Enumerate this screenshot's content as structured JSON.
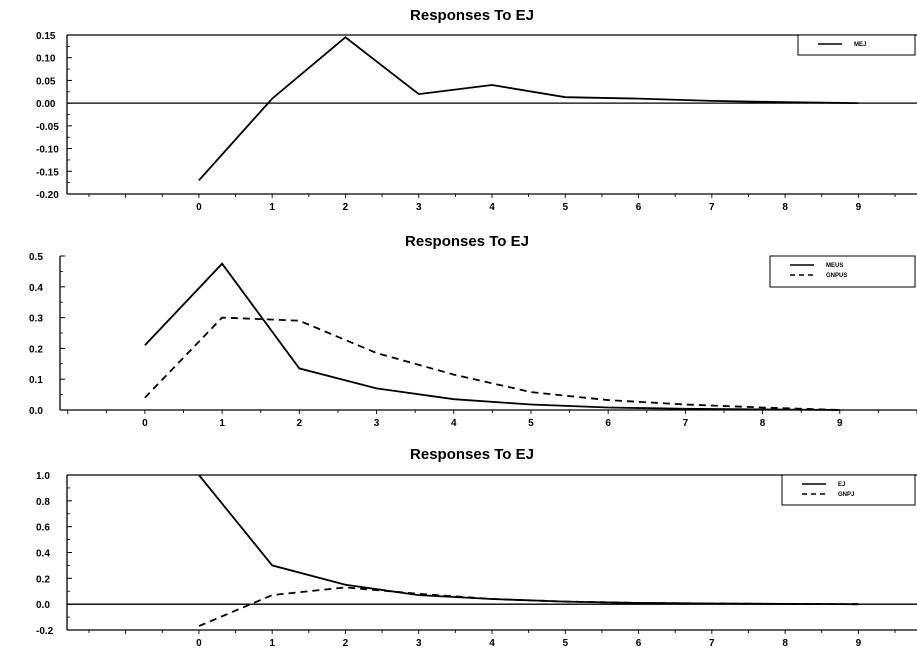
{
  "chart_data": [
    {
      "type": "line",
      "title": "Responses To EJ",
      "xlabel": "",
      "ylabel": "",
      "xlim": [
        -1.8,
        9.8
      ],
      "ylim": [
        -0.2,
        0.15
      ],
      "xticks": [
        0,
        1,
        2,
        3,
        4,
        5,
        6,
        7,
        8,
        9
      ],
      "xtick_labels": [
        "0",
        "1",
        "2",
        "3",
        "4",
        "5",
        "6",
        "7",
        "8",
        "9"
      ],
      "yticks": [
        0.15,
        0.1,
        0.05,
        0.0,
        -0.05,
        -0.1,
        -0.15,
        -0.2
      ],
      "ytick_labels": [
        "0.15",
        "0.10",
        "0.05",
        "0.00",
        "-0.05",
        "-0.10",
        "-0.15",
        "-0.20"
      ],
      "zero_line": true,
      "grid": false,
      "legend_position": "top-right",
      "series": [
        {
          "name": "MEJ",
          "dash": "solid",
          "x": [
            0,
            0.5,
            1,
            2,
            3,
            4,
            5,
            6,
            7,
            8,
            9
          ],
          "y": [
            -0.17,
            -0.08,
            0.01,
            0.145,
            0.02,
            0.04,
            0.013,
            0.01,
            0.005,
            0.002,
            0.0
          ]
        }
      ]
    },
    {
      "type": "line",
      "title": "Responses To EJ",
      "xlabel": "",
      "ylabel": "",
      "xlim": [
        -1.1,
        10.0
      ],
      "ylim": [
        0.0,
        0.5
      ],
      "xticks": [
        0,
        1,
        2,
        3,
        4,
        5,
        6,
        7,
        8,
        9
      ],
      "xtick_labels": [
        "0",
        "1",
        "2",
        "3",
        "4",
        "5",
        "6",
        "7",
        "8",
        "9"
      ],
      "yticks": [
        0.5,
        0.4,
        0.3,
        0.2,
        0.1,
        0.0
      ],
      "ytick_labels": [
        "0.5",
        "0.4",
        "0.3",
        "0.2",
        "0.1",
        "0.0"
      ],
      "zero_line": false,
      "grid": false,
      "legend_position": "top-right",
      "series": [
        {
          "name": "MEUS",
          "dash": "solid",
          "x": [
            0,
            1,
            2,
            3,
            4,
            5,
            6,
            7,
            8,
            9
          ],
          "y": [
            0.21,
            0.475,
            0.135,
            0.07,
            0.035,
            0.018,
            0.008,
            0.004,
            0.002,
            0.0
          ]
        },
        {
          "name": "GNPUS",
          "dash": "dashed",
          "x": [
            0,
            1,
            1.5,
            2,
            3,
            4,
            5,
            6,
            7,
            8,
            9
          ],
          "y": [
            0.04,
            0.3,
            0.295,
            0.29,
            0.185,
            0.115,
            0.058,
            0.032,
            0.018,
            0.008,
            0.0
          ]
        }
      ]
    },
    {
      "type": "line",
      "title": "Responses To EJ",
      "xlabel": "",
      "ylabel": "",
      "xlim": [
        -1.8,
        9.8
      ],
      "ylim": [
        -0.2,
        1.0
      ],
      "xticks": [
        0,
        1,
        2,
        3,
        4,
        5,
        6,
        7,
        8,
        9
      ],
      "xtick_labels": [
        "0",
        "1",
        "2",
        "3",
        "4",
        "5",
        "6",
        "7",
        "8",
        "9"
      ],
      "yticks": [
        1.0,
        0.8,
        0.6,
        0.4,
        0.2,
        0.0,
        -0.2
      ],
      "ytick_labels": [
        "1.0",
        "0.8",
        "0.6",
        "0.4",
        "0.2",
        "0.0",
        "-0.2"
      ],
      "zero_line": true,
      "grid": false,
      "legend_position": "top-right",
      "series": [
        {
          "name": "EJ",
          "dash": "solid",
          "x": [
            0,
            1,
            2,
            3,
            4,
            5,
            6,
            7,
            8,
            9
          ],
          "y": [
            1.0,
            0.3,
            0.15,
            0.07,
            0.04,
            0.02,
            0.01,
            0.005,
            0.002,
            0.0
          ]
        },
        {
          "name": "GNPJ",
          "dash": "dashed",
          "x": [
            0,
            1,
            2,
            3,
            4,
            5,
            6,
            7,
            8,
            9
          ],
          "y": [
            -0.17,
            0.07,
            0.13,
            0.08,
            0.04,
            0.02,
            0.01,
            0.005,
            0.002,
            0.0
          ]
        }
      ]
    }
  ]
}
